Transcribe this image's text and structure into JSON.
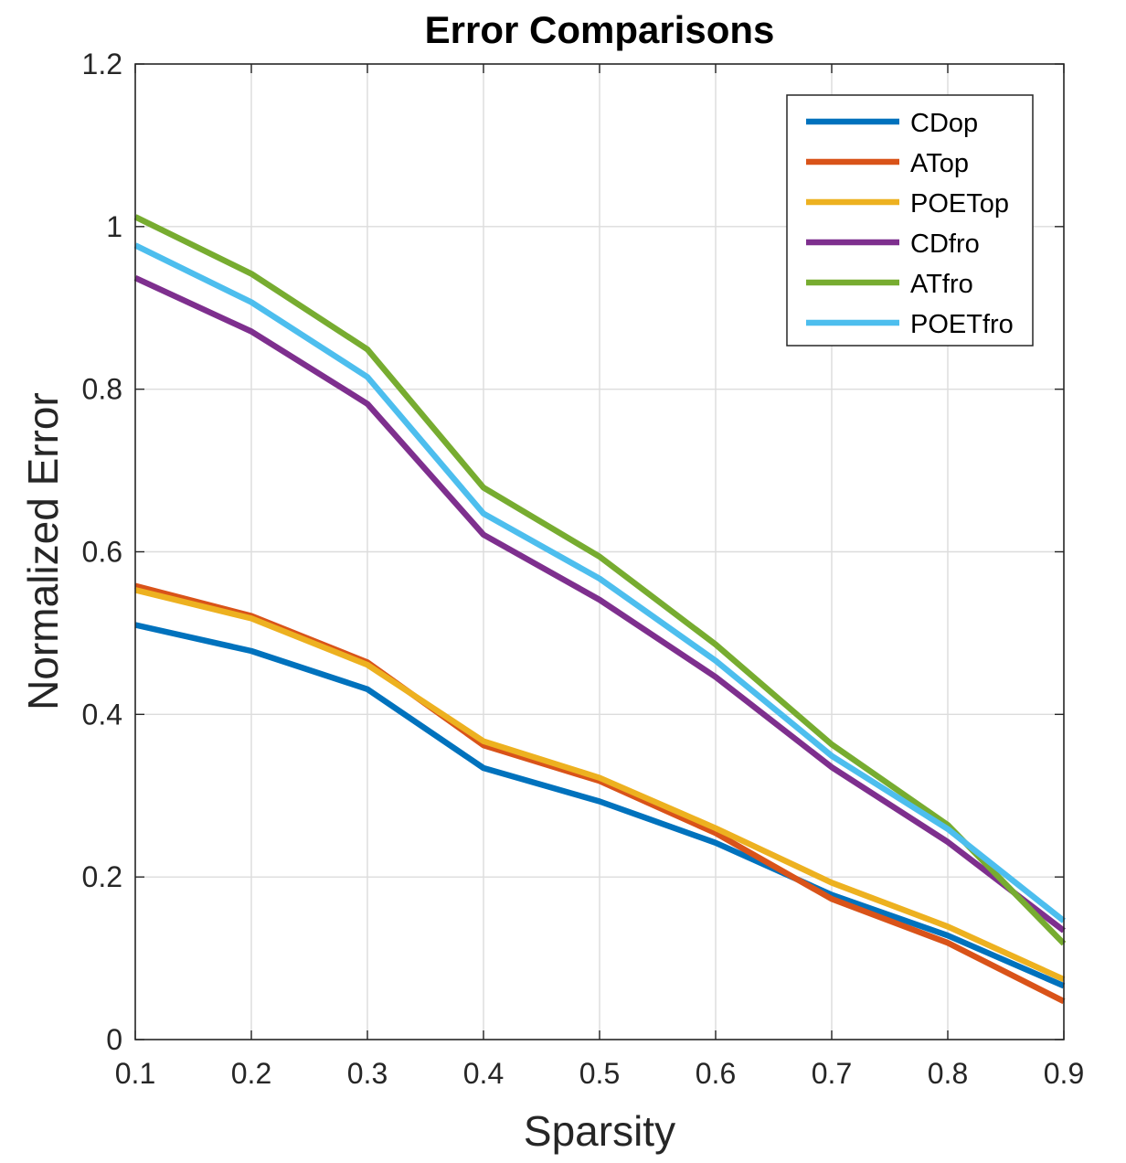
{
  "chart_data": {
    "type": "line",
    "title": "Error Comparisons",
    "xlabel": "Sparsity",
    "ylabel": "Normalized Error",
    "x": [
      0.1,
      0.2,
      0.3,
      0.4,
      0.5,
      0.6,
      0.7,
      0.8,
      0.9
    ],
    "xlim": [
      0.1,
      0.9
    ],
    "ylim": [
      0,
      1.2
    ],
    "xticks": [
      "0.1",
      "0.2",
      "0.3",
      "0.4",
      "0.5",
      "0.6",
      "0.7",
      "0.8",
      "0.9"
    ],
    "yticks": [
      "0",
      "0.2",
      "0.4",
      "0.6",
      "0.8",
      "1",
      "1.2"
    ],
    "grid": true,
    "legend_position": "top-right",
    "series": [
      {
        "name": "CDop",
        "color": "#0072BD",
        "values": [
          0.51,
          0.478,
          0.431,
          0.334,
          0.293,
          0.242,
          0.178,
          0.128,
          0.066
        ]
      },
      {
        "name": "ATop",
        "color": "#D95319",
        "values": [
          0.558,
          0.521,
          0.464,
          0.362,
          0.318,
          0.254,
          0.173,
          0.119,
          0.047
        ]
      },
      {
        "name": "POETop",
        "color": "#EDB120",
        "values": [
          0.553,
          0.518,
          0.461,
          0.367,
          0.322,
          0.26,
          0.193,
          0.139,
          0.074
        ]
      },
      {
        "name": "CDfro",
        "color": "#7E2F8E",
        "values": [
          0.937,
          0.871,
          0.782,
          0.621,
          0.541,
          0.446,
          0.335,
          0.243,
          0.134
        ]
      },
      {
        "name": "ATfro",
        "color": "#77AC30",
        "values": [
          1.012,
          0.942,
          0.849,
          0.679,
          0.594,
          0.486,
          0.363,
          0.264,
          0.118
        ]
      },
      {
        "name": "POETfro",
        "color": "#4DBEEE",
        "values": [
          0.977,
          0.907,
          0.815,
          0.647,
          0.567,
          0.466,
          0.349,
          0.259,
          0.146
        ]
      }
    ]
  }
}
